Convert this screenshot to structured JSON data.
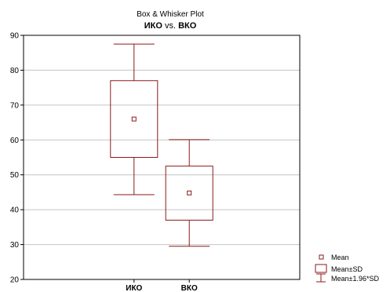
{
  "chart_data": {
    "type": "box",
    "title": "Box & Whisker Plot",
    "subtitle": {
      "left": "ИКО",
      "middle": " vs. ",
      "right": "ВКО"
    },
    "categories": [
      "ИКО",
      "ВКО"
    ],
    "ylim": [
      20,
      90
    ],
    "yticks": [
      20,
      30,
      40,
      50,
      60,
      70,
      80,
      90
    ],
    "grid": true,
    "legend_position": "bottom-right",
    "box_color": "#8b1a1a",
    "series": [
      {
        "category": "ИКО",
        "mean": 66,
        "sd_low": 55,
        "sd_high": 77,
        "whisker_low": 44.3,
        "whisker_high": 87.5
      },
      {
        "category": "ВКО",
        "mean": 44.8,
        "sd_low": 37,
        "sd_high": 52.5,
        "whisker_low": 29.5,
        "whisker_high": 60.1
      }
    ],
    "legend": [
      {
        "label": "Mean",
        "symbol": "mean-marker"
      },
      {
        "label": "Mean±SD",
        "symbol": "box"
      },
      {
        "label": "Mean±1.96*SD",
        "symbol": "whisker"
      }
    ]
  }
}
